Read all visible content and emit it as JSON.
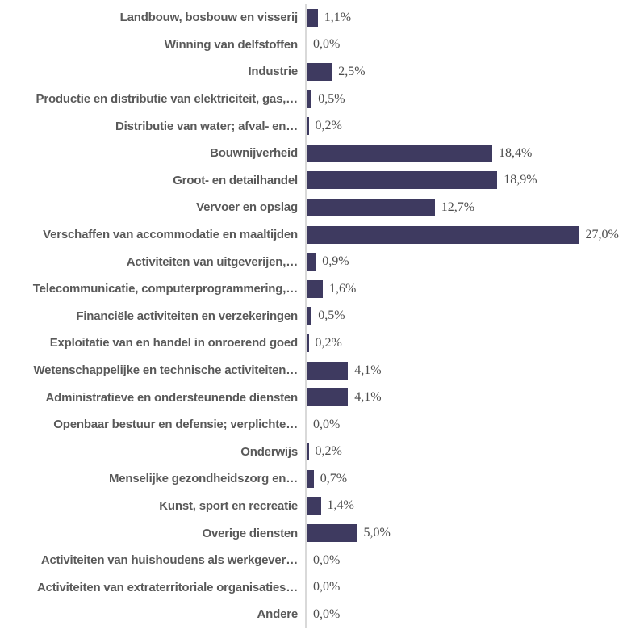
{
  "chart_data": {
    "type": "bar",
    "orientation": "horizontal",
    "title": "",
    "xlabel": "",
    "ylabel": "",
    "xlim": [
      0,
      27
    ],
    "grid": false,
    "legend": false,
    "categories": [
      "Landbouw, bosbouw en visserij",
      "Winning van delfstoffen",
      "Industrie",
      "Productie en distributie van elektriciteit, gas,…",
      "Distributie van water; afval- en…",
      "Bouwnijverheid",
      "Groot- en detailhandel",
      "Vervoer en opslag",
      "Verschaffen van accommodatie en maaltijden",
      "Activiteiten van uitgeverijen,…",
      "Telecommunicatie, computerprogrammering,…",
      "Financiële activiteiten en verzekeringen",
      "Exploitatie van en handel in onroerend goed",
      "Wetenschappelijke en technische activiteiten…",
      "Administratieve en ondersteunende diensten",
      "Openbaar bestuur en defensie; verplichte…",
      "Onderwijs",
      "Menselijke gezondheidszorg en…",
      "Kunst, sport en recreatie",
      "Overige diensten",
      "Activiteiten van huishoudens als werkgever…",
      "Activiteiten van extraterritoriale organisaties…",
      "Andere"
    ],
    "values": [
      1.1,
      0.0,
      2.5,
      0.5,
      0.2,
      18.4,
      18.9,
      12.7,
      27.0,
      0.9,
      1.6,
      0.5,
      0.2,
      4.1,
      4.1,
      0.0,
      0.2,
      0.7,
      1.4,
      5.0,
      0.0,
      0.0,
      0.0
    ],
    "value_labels": [
      "1,1%",
      "0,0%",
      "2,5%",
      "0,5%",
      "0,2%",
      "18,4%",
      "18,9%",
      "12,7%",
      "27,0%",
      "0,9%",
      "1,6%",
      "0,5%",
      "0,2%",
      "4,1%",
      "4,1%",
      "0,0%",
      "0,2%",
      "0,7%",
      "1,4%",
      "5,0%",
      "0,0%",
      "0,0%",
      "0,0%"
    ],
    "colors": {
      "bar": "#3e3a60",
      "axis_line": "#d9d9d9",
      "category_text": "#595959",
      "value_text": "#4d4d4d",
      "background": "#ffffff"
    }
  }
}
